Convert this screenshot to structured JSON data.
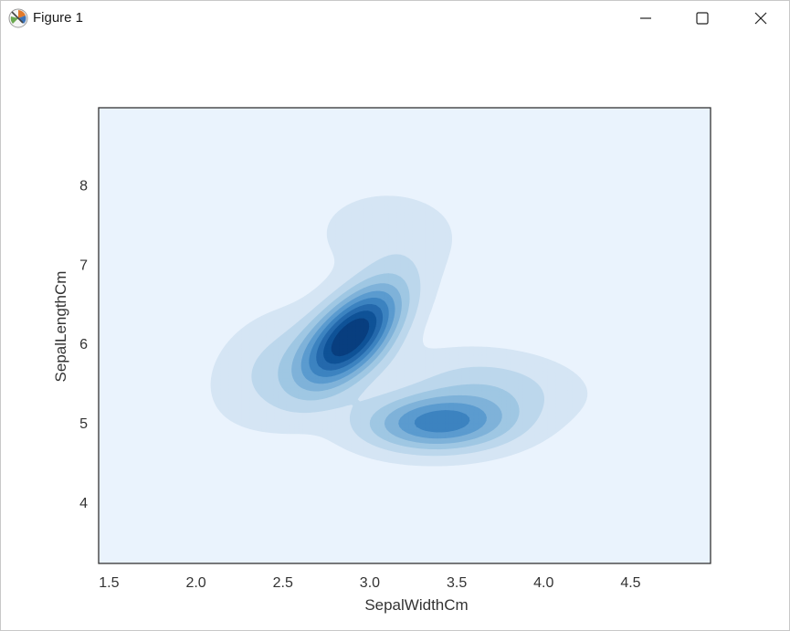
{
  "window": {
    "title": "Figure 1",
    "app_icon": "matplotlib-figure-icon",
    "buttons": {
      "minimize": "minimize-icon",
      "maximize": "maximize-icon",
      "close": "close-icon"
    }
  },
  "colors": {
    "background": "#eaf3fd",
    "levels": [
      "#d5e5f4",
      "#bcd7ec",
      "#9fc7e3",
      "#7fb2d9",
      "#5b9bcf",
      "#3c83c0",
      "#2469ac",
      "#0f5297",
      "#083e7f"
    ],
    "axes_frame": "#333333"
  },
  "chart_data": {
    "type": "kde-contour",
    "title": "",
    "xlabel": "SepalWidthCm",
    "ylabel": "SepalLengthCm",
    "xlim": [
      1.44,
      4.96
    ],
    "ylim": [
      3.23,
      8.97
    ],
    "x_ticks": [
      "1.5",
      "2.0",
      "2.5",
      "3.0",
      "3.5",
      "4.0",
      "4.5"
    ],
    "y_ticks": [
      "4",
      "5",
      "6",
      "7",
      "8"
    ],
    "x_tick_values": [
      1.5,
      2.0,
      2.5,
      3.0,
      3.5,
      4.0,
      4.5
    ],
    "y_tick_values": [
      4,
      5,
      6,
      7,
      8
    ],
    "grid": false,
    "levels": 9,
    "density_peaks": [
      {
        "x": 2.9,
        "y": 6.1,
        "density": 1.0,
        "sx": 0.2,
        "sy": 0.45,
        "rho": 0.6
      },
      {
        "x": 3.4,
        "y": 5.0,
        "density": 0.65,
        "sx": 0.3,
        "sy": 0.25,
        "rho": 0.05
      },
      {
        "x": 2.45,
        "y": 5.7,
        "density": 0.18,
        "sx": 0.25,
        "sy": 0.5,
        "rho": 0.3
      },
      {
        "x": 3.1,
        "y": 7.4,
        "density": 0.12,
        "sx": 0.3,
        "sy": 0.4,
        "rho": 0.0
      },
      {
        "x": 3.7,
        "y": 5.5,
        "density": 0.2,
        "sx": 0.35,
        "sy": 0.3,
        "rho": -0.2
      }
    ]
  }
}
